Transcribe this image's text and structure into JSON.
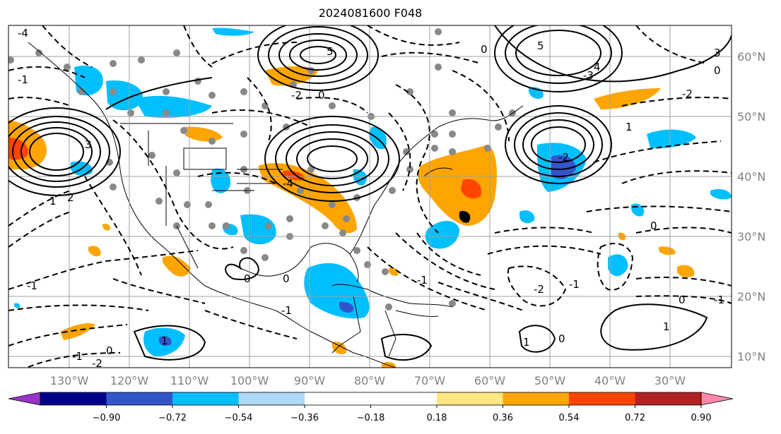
{
  "title": "2024081600 F048",
  "lon_ticks": [
    "130°W",
    "120°W",
    "110°W",
    "100°W",
    "90°W",
    "80°W",
    "70°W",
    "60°W",
    "50°W",
    "40°W",
    "30°W"
  ],
  "lat_ticks": [
    "10°N",
    "20°N",
    "30°N",
    "40°N",
    "50°N",
    "60°N"
  ],
  "colorbar": {
    "colors": [
      "#9932CC",
      "#00008B",
      "#3355CC",
      "#00BFFF",
      "#ADD8F6",
      "#FFFFFF",
      "#FFFFFF",
      "#FFE680",
      "#FFA500",
      "#FF4500",
      "#B22222",
      "#FF88AA"
    ],
    "labels": [
      "−0.90",
      "−0.72",
      "−0.54",
      "−0.36",
      "−0.18",
      "0.18",
      "0.36",
      "0.54",
      "0.72",
      "0.90"
    ]
  },
  "contour_labels": [
    "3",
    "1",
    "2",
    "0",
    "-1",
    "5",
    "-2",
    "-3",
    "4",
    "-4"
  ],
  "extent": {
    "lon_min": -138,
    "lon_max": -18,
    "lat_min": 8,
    "lat_max": 65
  }
}
